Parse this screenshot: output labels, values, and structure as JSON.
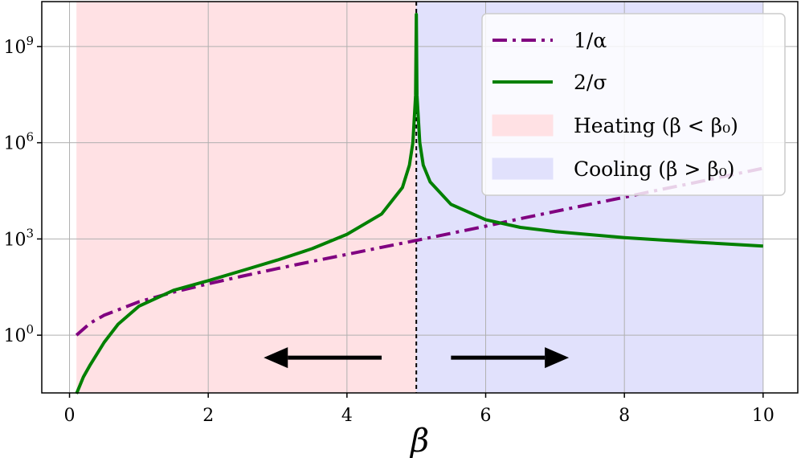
{
  "chart_data": {
    "type": "line",
    "xlabel": "β",
    "ylabel": "",
    "xlim": [
      -0.4,
      10.5
    ],
    "ylim_log10": [
      -1.8,
      10.4
    ],
    "yscale": "log",
    "grid": true,
    "x_ticks": [
      0,
      2,
      4,
      6,
      8,
      10
    ],
    "x_tick_labels": [
      "0",
      "2",
      "4",
      "6",
      "8",
      "10"
    ],
    "y_ticks_log10": [
      0,
      3,
      6,
      9
    ],
    "y_tick_labels": [
      "10",
      "10",
      "10",
      "10"
    ],
    "y_tick_exponents": [
      "0",
      "3",
      "6",
      "9"
    ],
    "beta0": 5,
    "regions": [
      {
        "name": "Heating (β < β₀)",
        "x_range": [
          0.1,
          5
        ],
        "color": "#ffe1e4"
      },
      {
        "name": "Cooling (β > β₀)",
        "x_range": [
          5,
          10
        ],
        "color": "#e1e1fc"
      }
    ],
    "series": [
      {
        "name": "1/α",
        "color": "#800080",
        "style": "dashdot",
        "x": [
          0.1,
          0.3,
          0.5,
          1.0,
          1.5,
          2.0,
          2.5,
          3.0,
          3.5,
          4.0,
          4.5,
          5.0,
          5.5,
          6.0,
          6.5,
          7.0,
          7.5,
          8.0,
          8.5,
          9.0,
          9.5,
          10.0
        ],
        "y": [
          1,
          2.4,
          4.2,
          11,
          22,
          40,
          70,
          120,
          200,
          330,
          550,
          900,
          1500,
          2500,
          4300,
          7200,
          12000,
          20000,
          34000,
          56000,
          95000,
          160000
        ]
      },
      {
        "name": "2/σ",
        "color": "#008000",
        "style": "solid",
        "x": [
          0.1,
          0.2,
          0.3,
          0.5,
          0.7,
          1.0,
          1.5,
          2.0,
          2.5,
          3.0,
          3.5,
          4.0,
          4.5,
          4.8,
          4.9,
          4.95,
          4.99,
          5.0,
          5.01,
          5.05,
          5.1,
          5.2,
          5.5,
          6.0,
          6.5,
          7.0,
          8.0,
          9.0,
          10.0
        ],
        "y": [
          0.015,
          0.05,
          0.12,
          0.6,
          2.2,
          8,
          25,
          50,
          105,
          220,
          500,
          1400,
          6000,
          40000,
          200000,
          1000000,
          30000000,
          10000000000,
          30000000,
          1000000,
          200000,
          60000,
          12000,
          4000,
          2300,
          1700,
          1100,
          800,
          600
        ]
      }
    ],
    "legend": {
      "placement": "top-right",
      "entries": [
        {
          "label": "1/α",
          "kind": "line",
          "series": 0
        },
        {
          "label": "2/σ",
          "kind": "line",
          "series": 1
        },
        {
          "label": "Heating (β < β₀)",
          "kind": "patch",
          "region": 0
        },
        {
          "label": "Cooling (β > β₀)",
          "kind": "patch",
          "region": 1
        }
      ]
    },
    "annotations": [
      {
        "type": "arrow",
        "direction": "left",
        "from_x": 4.5,
        "to_x": 2.8,
        "y_log10": -0.7
      },
      {
        "type": "arrow",
        "direction": "right",
        "from_x": 5.5,
        "to_x": 7.2,
        "y_log10": -0.7
      }
    ]
  }
}
